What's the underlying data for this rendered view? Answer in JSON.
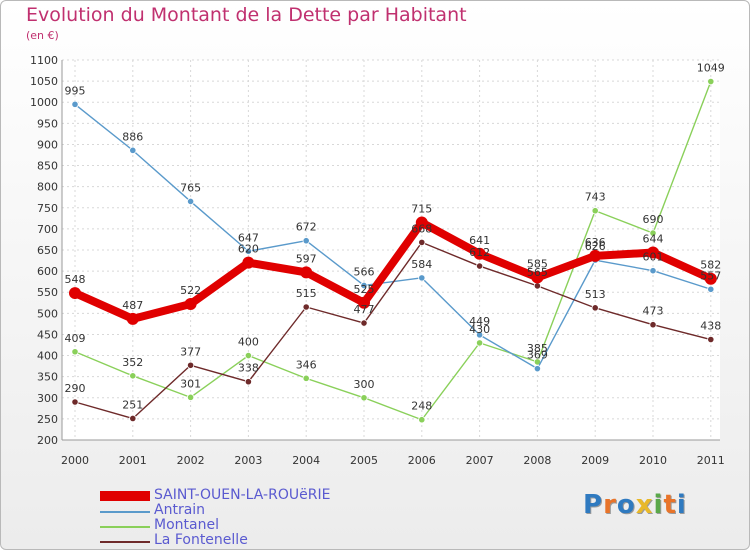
{
  "header": {
    "title": "Evolution du Montant de la Dette par Habitant",
    "subtitle": "(en €)"
  },
  "logo": {
    "text": "Proxiti",
    "colors": [
      "#2f7ac0",
      "#e8742a",
      "#2f7ac0",
      "#e8b82a",
      "#5aa84a",
      "#e8742a",
      "#2f7ac0"
    ]
  },
  "chart_data": {
    "type": "line",
    "title": "Evolution du Montant de la Dette par Habitant",
    "ylabel": "(en €)",
    "xlabel": "",
    "x": [
      "2000",
      "2001",
      "2002",
      "2003",
      "2004",
      "2005",
      "2006",
      "2007",
      "2008",
      "2009",
      "2010",
      "2011"
    ],
    "ylim": [
      200,
      1100
    ],
    "yticks": [
      200,
      250,
      300,
      350,
      400,
      450,
      500,
      550,
      600,
      650,
      700,
      750,
      800,
      850,
      900,
      950,
      1000,
      1050,
      1100
    ],
    "grid": true,
    "legend_position": "bottom-left",
    "series": [
      {
        "name": "SAINT-OUEN-LA-ROUëRIE",
        "color": "#e00000",
        "values": [
          548,
          487,
          522,
          620,
          597,
          525,
          715,
          641,
          585,
          636,
          644,
          582
        ],
        "labels": [
          "548",
          "487",
          "522",
          "620",
          "597",
          "525",
          "715",
          "641",
          "585",
          "636",
          "644",
          "582"
        ]
      },
      {
        "name": "Antrain",
        "color": "#5a9acb",
        "values": [
          995,
          886,
          765,
          647,
          672,
          566,
          584,
          449,
          369,
          626,
          601,
          557
        ],
        "labels": [
          "995",
          "886",
          "765",
          "647",
          "672",
          "566",
          "584",
          "449",
          "369",
          "626",
          "601",
          "557"
        ]
      },
      {
        "name": "Montanel",
        "color": "#8ad05a",
        "values": [
          409,
          352,
          301,
          400,
          346,
          300,
          248,
          430,
          385,
          743,
          690,
          1049
        ],
        "labels": [
          "409",
          "352",
          "301",
          "400",
          "346",
          "300",
          "248",
          "430",
          "385",
          "743",
          "690",
          "1049"
        ]
      },
      {
        "name": "La Fontenelle",
        "color": "#6e2a2a",
        "values": [
          290,
          251,
          377,
          338,
          515,
          477,
          668,
          612,
          565,
          513,
          473,
          438
        ],
        "labels": [
          "290",
          "251",
          "377",
          "338",
          "515",
          "477",
          "668",
          "612",
          "565",
          "513",
          "473",
          "438"
        ]
      }
    ]
  }
}
